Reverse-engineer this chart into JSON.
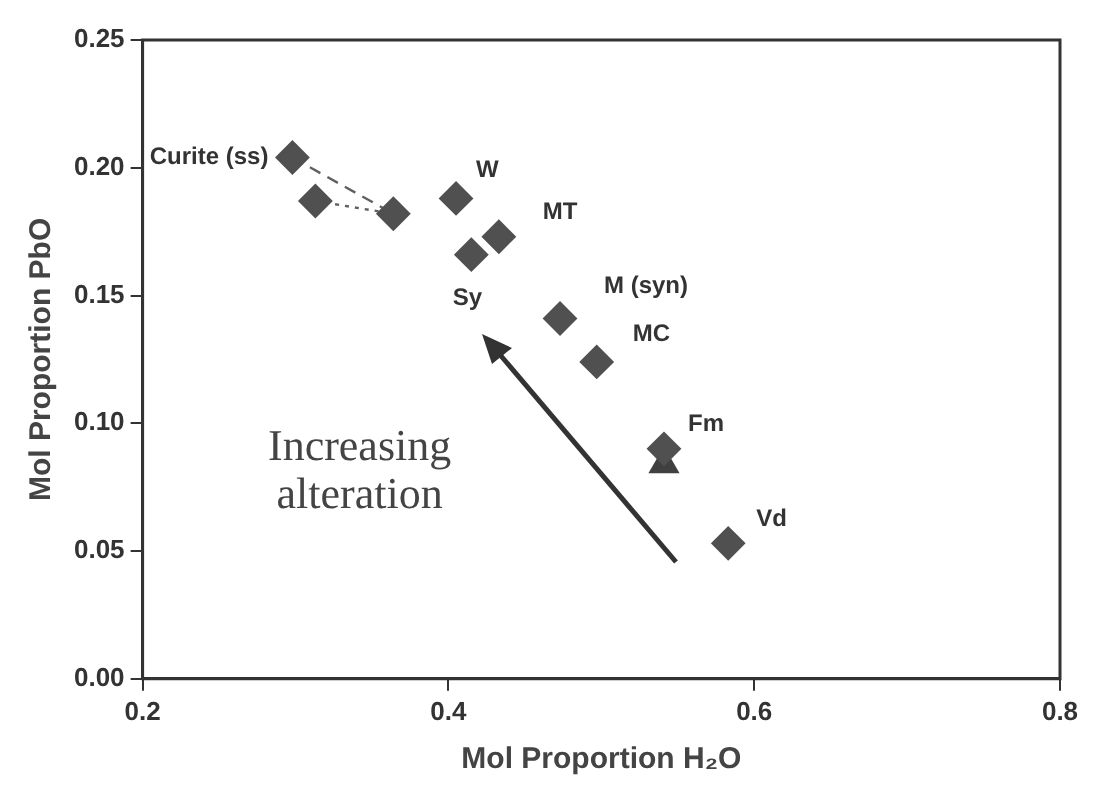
{
  "chart_data": {
    "type": "scatter",
    "xlabel": "Mol Proportion H₂O",
    "ylabel": "Mol Proportion PbO",
    "xlim": [
      0.2,
      0.8
    ],
    "xticks": [
      0.2,
      0.4,
      0.6,
      0.8
    ],
    "ylim": [
      0,
      0.25
    ],
    "yticks": [
      {
        "value": 0,
        "label": "0.00"
      },
      {
        "value": 0.05,
        "label": "0.05"
      },
      {
        "value": 0.1,
        "label": "0.10"
      },
      {
        "value": 0.15,
        "label": "0.15"
      },
      {
        "value": 0.2,
        "label": "0.20"
      },
      {
        "value": 0.25,
        "label": "0.25"
      }
    ],
    "grid": false,
    "legend": false,
    "series": [
      {
        "type": "scatter",
        "marker": "diamond",
        "color": "#505050",
        "x": [
          0.298,
          0.313,
          0.364,
          0.405,
          0.415,
          0.433,
          0.473,
          0.497,
          0.541,
          0.583
        ],
        "values": [
          0.204,
          0.187,
          0.182,
          0.188,
          0.166,
          0.173,
          0.141,
          0.124,
          0.09,
          0.053
        ]
      },
      {
        "type": "scatter",
        "marker": "triangle",
        "color": "#404040",
        "x": [
          0.541
        ],
        "values": [
          0.084
        ]
      },
      {
        "type": "line",
        "line_style": "dashed",
        "marker": "none",
        "color": "#606060",
        "x": [
          0.298,
          0.364
        ],
        "values": [
          0.204,
          0.182
        ]
      },
      {
        "type": "line",
        "line_style": "dotted",
        "marker": "none",
        "color": "#606060",
        "x": [
          0.313,
          0.364
        ],
        "values": [
          0.187,
          0.182
        ]
      }
    ],
    "annotations": [
      {
        "text": "Curite (ss)",
        "x": 0.298,
        "y": 0.204
      },
      {
        "text": "W",
        "x": 0.405,
        "y": 0.188
      },
      {
        "text": "MT",
        "x": 0.433,
        "y": 0.173
      },
      {
        "text": "Sy",
        "x": 0.415,
        "y": 0.166
      },
      {
        "text": "M (syn)",
        "x": 0.473,
        "y": 0.141
      },
      {
        "text": "MC",
        "x": 0.497,
        "y": 0.124
      },
      {
        "text": "Fm",
        "x": 0.541,
        "y": 0.09
      },
      {
        "text": "Vd",
        "x": 0.583,
        "y": 0.053
      },
      "Increasing alteration"
    ]
  }
}
